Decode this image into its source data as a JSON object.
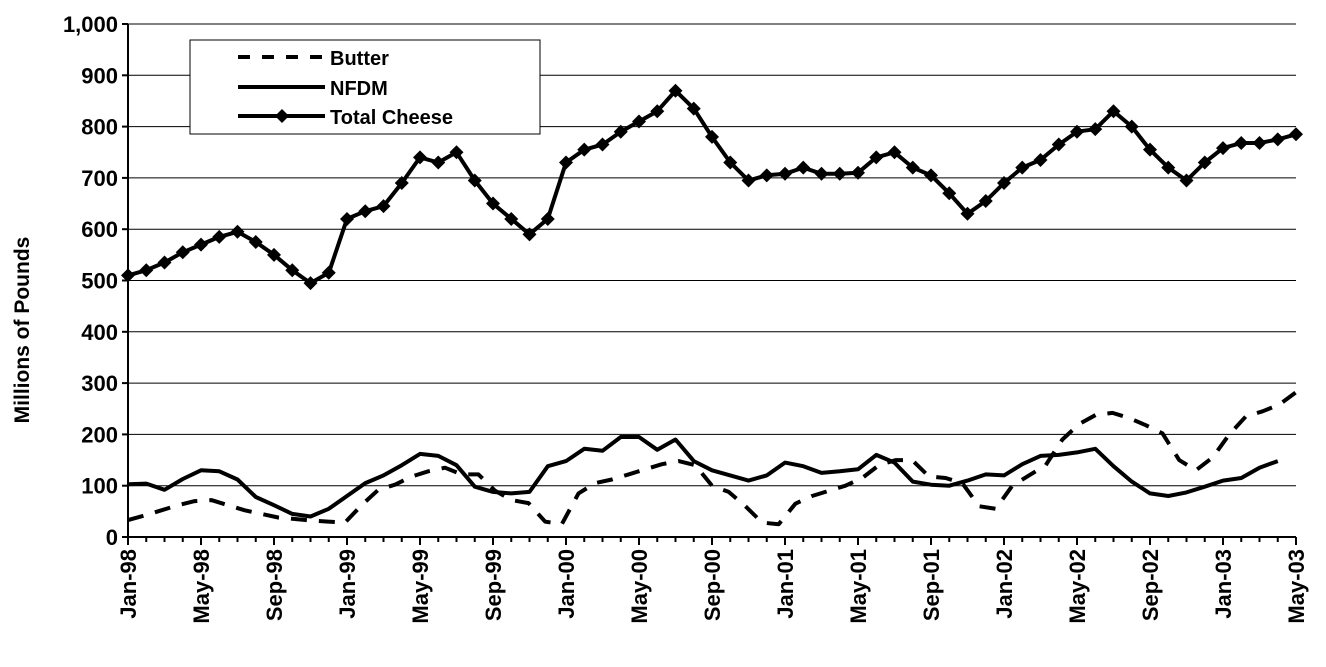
{
  "chart_data": {
    "type": "line",
    "ylabel": "Millions of Pounds",
    "xlabel": "",
    "ylim": [
      0,
      1000
    ],
    "yticks": [
      "0",
      "100",
      "200",
      "300",
      "400",
      "500",
      "600",
      "700",
      "800",
      "900",
      "1,000"
    ],
    "x_tick_labels": [
      "Jan-98",
      "May-98",
      "Sep-98",
      "Jan-99",
      "May-99",
      "Sep-99",
      "Jan-00",
      "May-00",
      "Sep-00",
      "Jan-01",
      "May-01",
      "Sep-01",
      "Jan-02",
      "May-02",
      "Sep-02",
      "Jan-03",
      "May-03"
    ],
    "x_start": "Jan-98",
    "x_end": "May-03",
    "grid": "horizontal",
    "legend_position": "top-left",
    "series": [
      {
        "name": "Butter",
        "style": "dashed",
        "color": "#000000",
        "values": [
          33,
          42,
          52,
          62,
          70,
          72,
          62,
          52,
          45,
          38,
          35,
          32,
          30,
          28,
          62,
          92,
          102,
          118,
          128,
          135,
          122,
          122,
          90,
          72,
          66,
          30,
          25,
          85,
          105,
          112,
          122,
          132,
          142,
          148,
          140,
          100,
          88,
          60,
          28,
          25,
          65,
          80,
          90,
          100,
          115,
          140,
          150,
          150,
          118,
          115,
          105,
          60,
          55,
          100,
          120,
          140,
          190,
          220,
          238,
          242,
          232,
          218,
          202,
          150,
          130,
          155,
          200,
          235,
          245,
          258,
          282
        ]
      },
      {
        "name": "NFDM",
        "style": "solid",
        "color": "#000000",
        "values": [
          103,
          104,
          92,
          113,
          130,
          128,
          112,
          78,
          62,
          45,
          40,
          55,
          80,
          105,
          120,
          140,
          162,
          158,
          140,
          98,
          88,
          85,
          88,
          138,
          148,
          172,
          168,
          195,
          195,
          170,
          190,
          148,
          130,
          120,
          110,
          120,
          145,
          138,
          125,
          128,
          132,
          160,
          145,
          108,
          102,
          100,
          110,
          122,
          120,
          142,
          158,
          160,
          165,
          172,
          138,
          108,
          85,
          80,
          87,
          98,
          110,
          115,
          135,
          148
        ]
      },
      {
        "name": "Total Cheese",
        "style": "solid-diamond",
        "color": "#000000",
        "values": [
          510,
          520,
          535,
          555,
          570,
          585,
          595,
          575,
          550,
          520,
          495,
          515,
          620,
          635,
          645,
          690,
          740,
          730,
          750,
          695,
          650,
          620,
          590,
          620,
          730,
          755,
          765,
          790,
          810,
          830,
          870,
          835,
          780,
          730,
          695,
          705,
          708,
          720,
          708,
          708,
          710,
          740,
          750,
          720,
          705,
          670,
          630,
          655,
          690,
          720,
          735,
          765,
          790,
          795,
          830,
          800,
          755,
          720,
          695,
          730,
          758,
          768,
          768,
          775,
          785
        ]
      }
    ]
  }
}
